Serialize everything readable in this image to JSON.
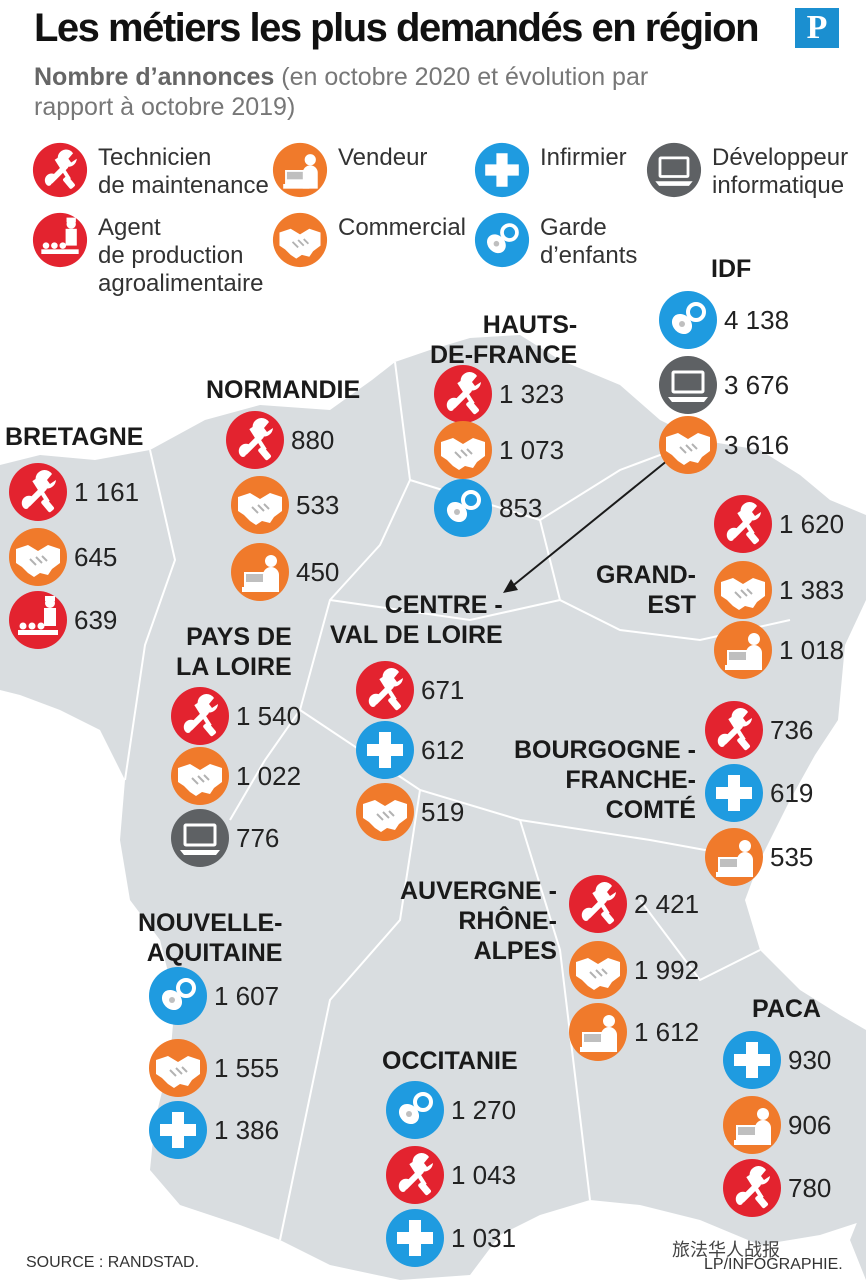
{
  "title": "Les métiers les plus demandés en région",
  "subtitle_bold": "Nombre d’annonces",
  "subtitle_rest": " (en octobre 2020 et évolution par rapport à octobre 2019)",
  "logo": "P",
  "colors": {
    "red": "#e3232f",
    "orange": "#f07a2b",
    "blue": "#1f9be0",
    "grey": "#5e6164",
    "map": "#d9dde0"
  },
  "legend": [
    {
      "icon": "wrench-screwdriver-icon",
      "color": "red",
      "label": "Technicien\nde maintenance"
    },
    {
      "icon": "cashier-icon",
      "color": "orange",
      "label": "Vendeur"
    },
    {
      "icon": "medical-cross-icon",
      "color": "blue",
      "label": "Infirmier"
    },
    {
      "icon": "laptop-icon",
      "color": "grey",
      "label": "Développeur\ninformatique"
    },
    {
      "icon": "food-production-icon",
      "color": "red",
      "label": "Agent\nde production\nagroalimentaire"
    },
    {
      "icon": "handshake-icon",
      "color": "orange",
      "label": "Commercial"
    },
    {
      "icon": "pacifier-icon",
      "color": "blue",
      "label": "Garde\nd’enfants"
    }
  ],
  "regions": [
    {
      "name": "BRETAGNE",
      "stats": [
        {
          "icon": "wrench",
          "value": "1 161"
        },
        {
          "icon": "handshake",
          "value": "645"
        },
        {
          "icon": "food",
          "value": "639"
        }
      ]
    },
    {
      "name": "NORMANDIE",
      "stats": [
        {
          "icon": "wrench",
          "value": "880"
        },
        {
          "icon": "handshake",
          "value": "533"
        },
        {
          "icon": "cashier",
          "value": "450"
        }
      ]
    },
    {
      "name": "HAUTS-\nDE-FRANCE",
      "stats": [
        {
          "icon": "wrench",
          "value": "1 323"
        },
        {
          "icon": "handshake",
          "value": "1 073"
        },
        {
          "icon": "pacifier",
          "value": "853"
        }
      ]
    },
    {
      "name": "IDF",
      "stats": [
        {
          "icon": "pacifier",
          "value": "4 138"
        },
        {
          "icon": "laptop",
          "value": "3 676"
        },
        {
          "icon": "handshake",
          "value": "3 616"
        }
      ]
    },
    {
      "name": "GRAND-\nEST",
      "stats": [
        {
          "icon": "wrench",
          "value": "1 620"
        },
        {
          "icon": "handshake",
          "value": "1 383"
        },
        {
          "icon": "cashier",
          "value": "1 018"
        }
      ]
    },
    {
      "name": "PAYS DE\nLA LOIRE",
      "stats": [
        {
          "icon": "wrench",
          "value": "1 540"
        },
        {
          "icon": "handshake",
          "value": "1 022"
        },
        {
          "icon": "laptop",
          "value": "776"
        }
      ]
    },
    {
      "name": "CENTRE -\nVAL DE LOIRE",
      "stats": [
        {
          "icon": "wrench",
          "value": "671"
        },
        {
          "icon": "cross",
          "value": "612"
        },
        {
          "icon": "handshake",
          "value": "519"
        }
      ]
    },
    {
      "name": "BOURGOGNE -\nFRANCHE-\nCOMTÉ",
      "stats": [
        {
          "icon": "wrench",
          "value": "736"
        },
        {
          "icon": "cross",
          "value": "619"
        },
        {
          "icon": "cashier",
          "value": "535"
        }
      ]
    },
    {
      "name": "AUVERGNE -\nRHÔNE-\nALPES",
      "stats": [
        {
          "icon": "wrench",
          "value": "2 421"
        },
        {
          "icon": "handshake",
          "value": "1 992"
        },
        {
          "icon": "cashier",
          "value": "1 612"
        }
      ]
    },
    {
      "name": "NOUVELLE-\nAQUITAINE",
      "stats": [
        {
          "icon": "pacifier",
          "value": "1 607"
        },
        {
          "icon": "handshake",
          "value": "1 555"
        },
        {
          "icon": "cross",
          "value": "1 386"
        }
      ]
    },
    {
      "name": "OCCITANIE",
      "stats": [
        {
          "icon": "pacifier",
          "value": "1 270"
        },
        {
          "icon": "wrench",
          "value": "1 043"
        },
        {
          "icon": "cross",
          "value": "1 031"
        }
      ]
    },
    {
      "name": "PACA",
      "stats": [
        {
          "icon": "cross",
          "value": "930"
        },
        {
          "icon": "cashier",
          "value": "906"
        },
        {
          "icon": "wrench",
          "value": "780"
        }
      ]
    }
  ],
  "footer": {
    "source": "SOURCE : RANDSTAD.",
    "credit": "LP/INFOGRAPHIE.",
    "watermark": "旅法华人战报"
  }
}
